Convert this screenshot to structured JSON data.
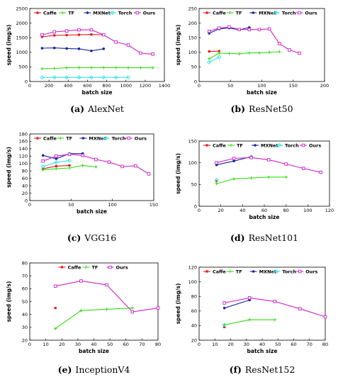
{
  "colors": {
    "Caffe": "#e41a1c",
    "TF": "#33dd11",
    "MXNet": "#1428a0",
    "Torch": "#33e0e8",
    "Ours": "#cc22cc"
  },
  "chart_data": [
    {
      "type": "line",
      "caption_tag": "(a)",
      "caption_text": "AlexNet",
      "xlabel": "batch size",
      "ylabel": "speed (img/s)",
      "xlim": [
        0,
        1400
      ],
      "ylim": [
        0,
        2500
      ],
      "xticks": [
        0,
        200,
        400,
        600,
        800,
        1000,
        1200,
        1400
      ],
      "yticks": [
        0,
        500,
        1000,
        1500,
        2000,
        2500
      ],
      "legend": [
        "Caffe",
        "TF",
        "MXNet",
        "Torch",
        "Ours"
      ],
      "series": [
        {
          "name": "Caffe",
          "x": [
            128,
            256,
            384,
            512,
            640,
            768
          ],
          "y": [
            1530,
            1580,
            1590,
            1600,
            1610,
            1600
          ]
        },
        {
          "name": "TF",
          "x": [
            128,
            256,
            384,
            512,
            640,
            768,
            896,
            1024,
            1152,
            1280
          ],
          "y": [
            440,
            450,
            470,
            475,
            475,
            475,
            475,
            470,
            470,
            470
          ]
        },
        {
          "name": "MXNet",
          "x": [
            128,
            256,
            384,
            512,
            640,
            768
          ],
          "y": [
            1140,
            1150,
            1130,
            1120,
            1050,
            1120
          ]
        },
        {
          "name": "Torch",
          "x": [
            128,
            256,
            384,
            512,
            640,
            768,
            896,
            1024
          ],
          "y": [
            140,
            140,
            140,
            140,
            140,
            140,
            140,
            140
          ]
        },
        {
          "name": "Ours",
          "x": [
            128,
            256,
            384,
            512,
            640,
            768,
            896,
            1024,
            1152,
            1280
          ],
          "y": [
            1600,
            1700,
            1730,
            1770,
            1770,
            1600,
            1350,
            1250,
            970,
            940
          ]
        }
      ]
    },
    {
      "type": "line",
      "caption_tag": "(b)",
      "caption_text": "ResNet50",
      "xlabel": "batch size",
      "ylabel": "speed (img/s)",
      "xlim": [
        0,
        200
      ],
      "ylim": [
        0,
        250
      ],
      "xticks": [
        0,
        50,
        100,
        150,
        200
      ],
      "yticks": [
        0,
        50,
        100,
        150,
        200,
        250
      ],
      "legend": [
        "Caffe",
        "TF",
        "MXNet",
        "Torch",
        "Ours"
      ],
      "series": [
        {
          "name": "Caffe",
          "x": [
            16,
            32
          ],
          "y": [
            103,
            104
          ]
        },
        {
          "name": "TF",
          "x": [
            16,
            32,
            48,
            64,
            80,
            96,
            112,
            128
          ],
          "y": [
            78,
            97,
            96,
            95,
            98,
            98,
            100,
            102
          ]
        },
        {
          "name": "MXNet",
          "x": [
            16,
            32,
            48,
            64,
            80
          ],
          "y": [
            165,
            180,
            183,
            177,
            185
          ]
        },
        {
          "name": "Torch",
          "x": [
            16,
            32
          ],
          "y": [
            66,
            83
          ]
        },
        {
          "name": "Ours",
          "x": [
            16,
            32,
            48,
            64,
            80,
            96,
            112,
            128,
            144,
            160
          ],
          "y": [
            172,
            183,
            187,
            178,
            178,
            178,
            180,
            130,
            108,
            97
          ]
        }
      ]
    },
    {
      "type": "line",
      "caption_tag": "(c)",
      "caption_text": "VGG16",
      "xlabel": "batch size",
      "ylabel": "speed (img/s)",
      "xlim": [
        0,
        150
      ],
      "ylim": [
        0,
        180
      ],
      "xticks": [
        0,
        50,
        100,
        150
      ],
      "yticks": [
        0,
        20,
        40,
        60,
        80,
        100,
        120,
        140,
        160,
        180
      ],
      "legend": [
        "Caffe",
        "TF",
        "MXNet",
        "Torch",
        "Ours"
      ],
      "series": [
        {
          "name": "Caffe",
          "x": [
            16,
            32,
            48
          ],
          "y": [
            86,
            93,
            95
          ]
        },
        {
          "name": "TF",
          "x": [
            16,
            32,
            48,
            64,
            80
          ],
          "y": [
            83,
            86,
            88,
            95,
            91
          ]
        },
        {
          "name": "MXNet",
          "x": [
            16,
            32,
            48,
            64
          ],
          "y": [
            122,
            113,
            127,
            127
          ]
        },
        {
          "name": "Torch",
          "x": [
            16,
            32,
            48
          ],
          "y": [
            92,
            103,
            108
          ]
        },
        {
          "name": "Ours",
          "x": [
            16,
            32,
            48,
            64,
            80,
            96,
            112,
            128,
            144
          ],
          "y": [
            107,
            120,
            125,
            122,
            111,
            104,
            92,
            94,
            72
          ]
        }
      ]
    },
    {
      "type": "line",
      "caption_tag": "(d)",
      "caption_text": "ResNet101",
      "xlabel": "batch size",
      "ylabel": "speed (img/s)",
      "xlim": [
        0,
        120
      ],
      "ylim": [
        0,
        150
      ],
      "xticks": [
        0,
        20,
        40,
        60,
        80,
        100,
        120
      ],
      "yticks": [
        0,
        50,
        100,
        150
      ],
      "legend": [
        "Caffe",
        "TF",
        "MXNet",
        "Torch",
        "Ours"
      ],
      "series": [
        {
          "name": "Caffe",
          "x": [
            16
          ],
          "y": [
            58
          ]
        },
        {
          "name": "TF",
          "x": [
            16,
            32,
            48,
            64,
            80
          ],
          "y": [
            52,
            63,
            65,
            67,
            67
          ]
        },
        {
          "name": "MXNet",
          "x": [
            16,
            32,
            48
          ],
          "y": [
            95,
            104,
            114
          ]
        },
        {
          "name": "Torch",
          "x": [
            16
          ],
          "y": [
            61
          ]
        },
        {
          "name": "Ours",
          "x": [
            16,
            32,
            48,
            64,
            80,
            96,
            112
          ],
          "y": [
            100,
            110,
            112,
            107,
            97,
            87,
            78
          ]
        }
      ]
    },
    {
      "type": "line",
      "caption_tag": "(e)",
      "caption_text": "InceptionV4",
      "xlabel": "batch size",
      "ylabel": "speed (img/s)",
      "xlim": [
        0,
        80
      ],
      "ylim": [
        20,
        80
      ],
      "xticks": [
        0,
        10,
        20,
        30,
        40,
        50,
        60,
        70,
        80
      ],
      "yticks": [
        20,
        30,
        40,
        50,
        60,
        70,
        80
      ],
      "legend": [
        "Caffe",
        "TF",
        "Ours"
      ],
      "series": [
        {
          "name": "Caffe",
          "x": [
            16
          ],
          "y": [
            45
          ]
        },
        {
          "name": "TF",
          "x": [
            16,
            32,
            48,
            64
          ],
          "y": [
            29,
            43,
            44,
            45
          ]
        },
        {
          "name": "Ours",
          "x": [
            16,
            32,
            48,
            64,
            80
          ],
          "y": [
            62,
            66,
            63,
            42,
            45
          ]
        }
      ]
    },
    {
      "type": "line",
      "caption_tag": "(f)",
      "caption_text": "ResNet152",
      "xlabel": "batch size",
      "ylabel": "speed (img/s)",
      "xlim": [
        0,
        80
      ],
      "ylim": [
        20,
        120
      ],
      "xticks": [
        0,
        10,
        20,
        30,
        40,
        50,
        60,
        70,
        80
      ],
      "yticks": [
        20,
        40,
        60,
        80,
        100,
        120
      ],
      "legend": [
        "Caffe",
        "TF",
        "MXNet",
        "Torch",
        "Ours"
      ],
      "series": [
        {
          "name": "Caffe",
          "x": [
            16
          ],
          "y": [
            38
          ]
        },
        {
          "name": "TF",
          "x": [
            16,
            32,
            48
          ],
          "y": [
            41,
            48,
            48
          ]
        },
        {
          "name": "MXNet",
          "x": [
            16,
            32
          ],
          "y": [
            64,
            75
          ]
        },
        {
          "name": "Torch",
          "x": [
            16
          ],
          "y": [
            41
          ]
        },
        {
          "name": "Ours",
          "x": [
            16,
            32,
            48,
            64,
            80
          ],
          "y": [
            71,
            78,
            73,
            63,
            52
          ]
        }
      ]
    }
  ]
}
